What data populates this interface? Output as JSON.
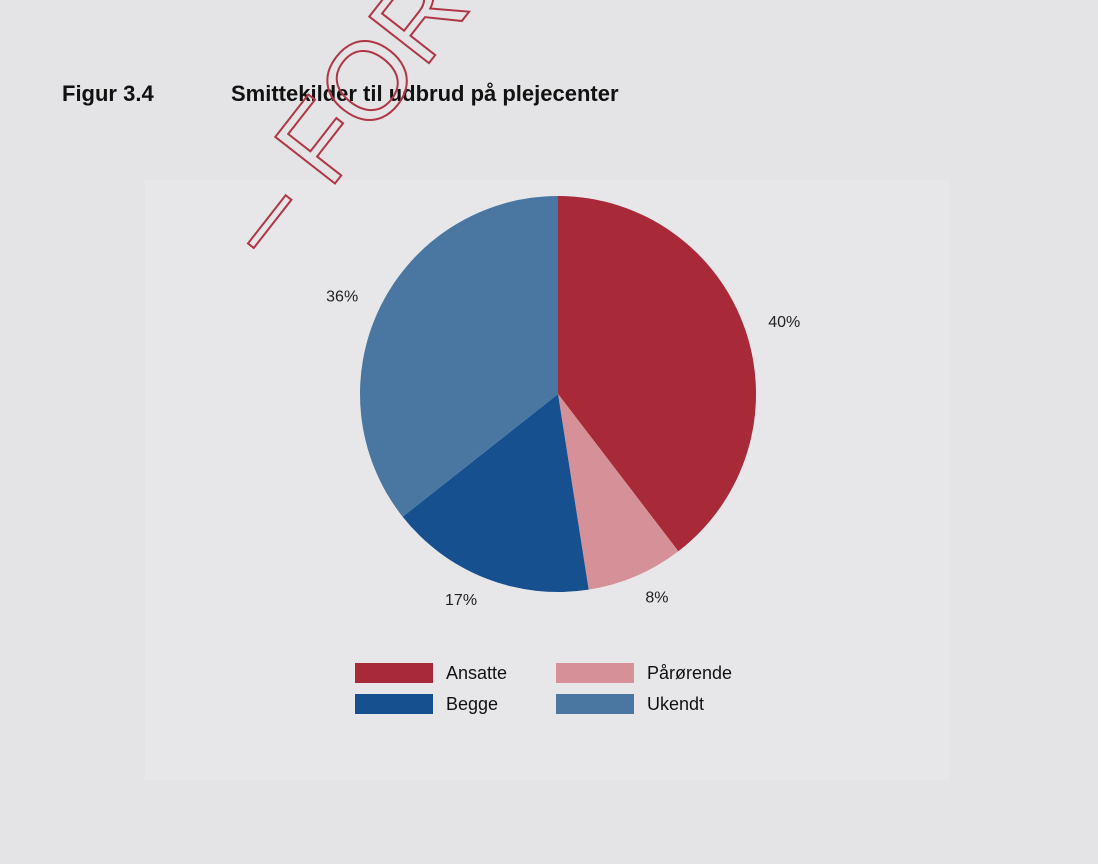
{
  "watermark": "– FORT",
  "figure_number": "Figur 3.4",
  "chart_data": {
    "type": "pie",
    "title": "Smittekilder til udbrud på plejecenter",
    "categories": [
      "Ansatte",
      "Pårørende",
      "Begge",
      "Ukendt"
    ],
    "values": [
      40,
      8,
      17,
      36
    ],
    "value_labels": [
      "40%",
      "8%",
      "17%",
      "36%"
    ],
    "colors": [
      "#a82a38",
      "#d69097",
      "#16508e",
      "#4a77a1"
    ],
    "legend": "bottom"
  }
}
